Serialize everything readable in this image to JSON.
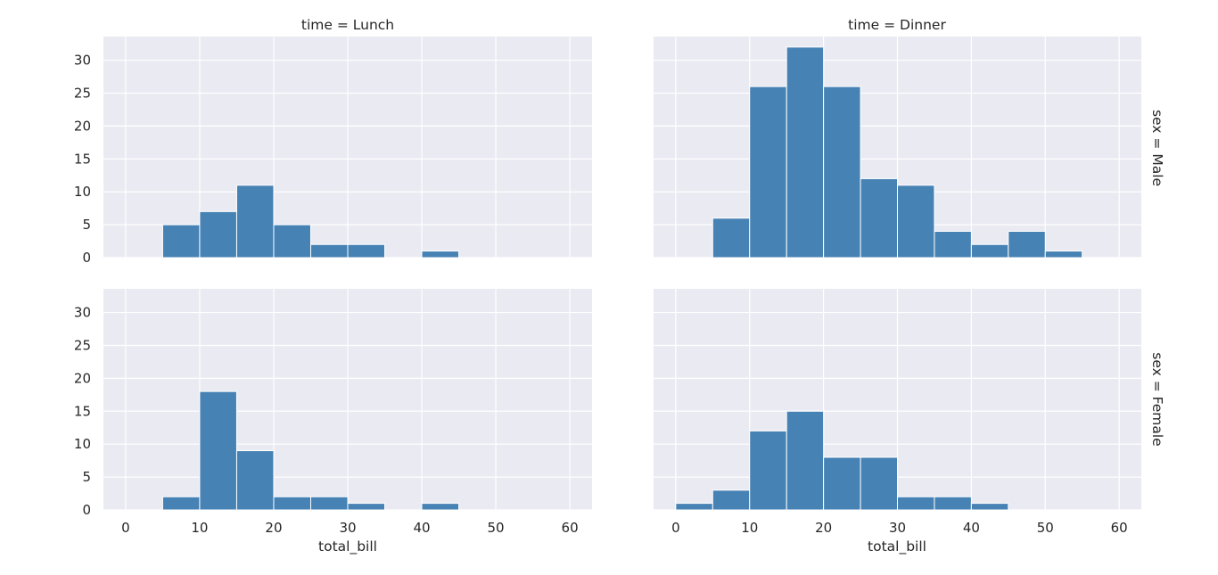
{
  "chart_data": {
    "type": "bar",
    "x_label": "total_bill",
    "x_ticks": [
      0,
      10,
      20,
      30,
      40,
      50,
      60
    ],
    "y_ticks": [
      0,
      5,
      10,
      15,
      20,
      25,
      30
    ],
    "xlim": [
      -3,
      63
    ],
    "ylim": [
      0,
      33.6
    ],
    "bin_edges": [
      0,
      5,
      10,
      15,
      20,
      25,
      30,
      35,
      40,
      45,
      50,
      55,
      60
    ],
    "grid": true,
    "col_titles": [
      "time = Lunch",
      "time = Dinner"
    ],
    "row_titles": [
      "sex = Male",
      "sex = Female"
    ],
    "bar_color": "#4682b4",
    "panel_background": "#eaeaf2",
    "panels": [
      {
        "time": "Lunch",
        "sex": "Male",
        "counts": [
          0,
          5,
          7,
          11,
          5,
          2,
          2,
          0,
          1,
          0,
          0,
          0
        ]
      },
      {
        "time": "Dinner",
        "sex": "Male",
        "counts": [
          0,
          6,
          26,
          32,
          26,
          12,
          11,
          4,
          2,
          4,
          1,
          0
        ]
      },
      {
        "time": "Lunch",
        "sex": "Female",
        "counts": [
          0,
          2,
          18,
          9,
          2,
          2,
          1,
          0,
          1,
          0,
          0,
          0
        ]
      },
      {
        "time": "Dinner",
        "sex": "Female",
        "counts": [
          1,
          3,
          12,
          15,
          8,
          8,
          2,
          2,
          1,
          0,
          0,
          0
        ]
      }
    ]
  }
}
